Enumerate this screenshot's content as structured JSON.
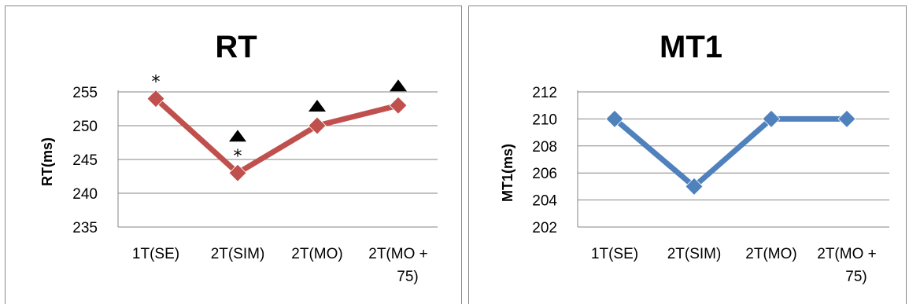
{
  "chart_data": [
    {
      "type": "line",
      "title": "RT",
      "ylabel": "RT(ms)",
      "xlabel": "",
      "categories": [
        "1T(SE)",
        "2T(SIM)",
        "2T(MO)",
        "2T(MO +|75)"
      ],
      "values": [
        254,
        243,
        250,
        253
      ],
      "ylim": [
        235,
        255
      ],
      "yticks": [
        "235",
        "240",
        "245",
        "250",
        "255"
      ],
      "grid": true,
      "legend": "none",
      "color": "#C0504D",
      "marker": "diamond",
      "annotations": [
        {
          "category_index": 0,
          "symbols": [
            "*"
          ]
        },
        {
          "category_index": 1,
          "symbols": [
            "▲",
            "*"
          ]
        },
        {
          "category_index": 2,
          "symbols": [
            "▲"
          ]
        },
        {
          "category_index": 3,
          "symbols": [
            "▲"
          ]
        }
      ]
    },
    {
      "type": "line",
      "title": "MT1",
      "ylabel": "MT1(ms)",
      "xlabel": "",
      "categories": [
        "1T(SE)",
        "2T(SIM)",
        "2T(MO)",
        "2T(MO +|75)"
      ],
      "values": [
        210,
        205,
        210,
        210
      ],
      "ylim": [
        202,
        212
      ],
      "yticks": [
        "202",
        "204",
        "206",
        "208",
        "210",
        "212"
      ],
      "grid": true,
      "legend": "none",
      "color": "#4F81BD",
      "marker": "diamond",
      "annotations": []
    }
  ]
}
